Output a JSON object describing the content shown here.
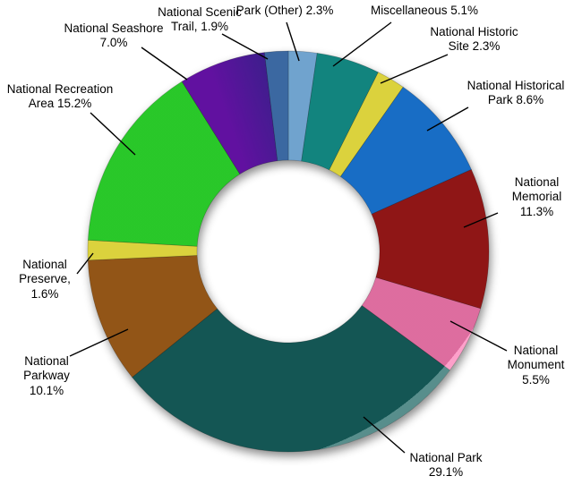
{
  "chart_data": {
    "type": "pie",
    "subtype": "donut",
    "legend": "none",
    "labels_style": "outside-with-leader-lines",
    "start_angle_deg": 0,
    "direction": "clockwise",
    "total_percent": 100.0,
    "items": [
      {
        "name": "Park (Other)",
        "value_pct": 2.3,
        "color": "#7FB9EA",
        "label_lines": [
          "Park (Other) 2.3%"
        ]
      },
      {
        "name": "Miscellaneous",
        "value_pct": 5.1,
        "color": "#149690",
        "label_lines": [
          "Miscellaneous 5.1%"
        ]
      },
      {
        "name": "National Historic Site",
        "value_pct": 2.3,
        "color": "#F9EF45",
        "label_lines": [
          "National Historic",
          "Site 2.3%"
        ]
      },
      {
        "name": "National Historical Park",
        "value_pct": 8.6,
        "color": "#1B7CE0",
        "label_lines": [
          "National Historical",
          "Park 8.6%"
        ]
      },
      {
        "name": "National Memorial",
        "value_pct": 11.3,
        "color": "#A31919",
        "label_lines": [
          "National",
          "Memorial",
          "11.3%"
        ]
      },
      {
        "name": "National Monument",
        "value_pct": 5.5,
        "color": "#FC7CB5",
        "label_lines": [
          "National",
          "Monument",
          "5.5%"
        ]
      },
      {
        "name": "National Park",
        "value_pct": 29.1,
        "color": "#176260",
        "label_lines": [
          "National Park",
          "29.1%"
        ]
      },
      {
        "name": "National Parkway",
        "value_pct": 10.1,
        "color": "#A6611A",
        "label_lines": [
          "National",
          "Parkway",
          "10.1%"
        ]
      },
      {
        "name": "National Preserve",
        "value_pct": 1.6,
        "color": "#F9EF45",
        "label_lines": [
          "National",
          "Preserve,",
          "1.6%"
        ]
      },
      {
        "name": "National Recreation Area",
        "value_pct": 15.2,
        "color": "#2FE32F",
        "label_lines": [
          "National Recreation",
          "Area 15.2%"
        ]
      },
      {
        "name": "National Seashore",
        "value_pct": 7.0,
        "color": "#6E13B6",
        "color2": "#45229F",
        "label_lines": [
          "National Seashore",
          "7.0%"
        ]
      },
      {
        "name": "National Scenic Trail",
        "value_pct": 1.9,
        "color": "#4376B7",
        "label_lines": [
          "National Scenic",
          "Trail, 1.9%"
        ]
      }
    ]
  }
}
